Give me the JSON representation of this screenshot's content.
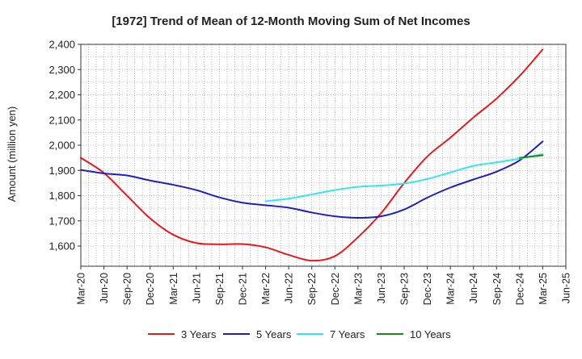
{
  "chart_data": {
    "type": "line",
    "title": "[1972]  Trend of Mean of 12-Month Moving Sum of Net Incomes",
    "ylabel": "Amount (million yen)",
    "xlabel": "",
    "ylim": [
      1520,
      2400
    ],
    "yticks": [
      1600,
      1700,
      1800,
      1900,
      2000,
      2100,
      2200,
      2300,
      2400
    ],
    "ytick_labels": [
      "1,600",
      "1,700",
      "1,800",
      "1,900",
      "2,000",
      "2,100",
      "2,200",
      "2,300",
      "2,400"
    ],
    "x_tick_labels": [
      "Mar-20",
      "Jun-20",
      "Sep-20",
      "Dec-20",
      "Mar-21",
      "Jun-21",
      "Sep-21",
      "Dec-21",
      "Mar-22",
      "Jun-22",
      "Sep-22",
      "Dec-22",
      "Mar-23",
      "Jun-23",
      "Sep-23",
      "Dec-23",
      "Mar-24",
      "Jun-24",
      "Sep-24",
      "Dec-24",
      "Mar-25",
      "Jun-25"
    ],
    "grid": true,
    "legend_position": "bottom",
    "series": [
      {
        "name": "3 Years",
        "color": "#e31a1c",
        "x": [
          "Mar-20",
          "Jun-20",
          "Sep-20",
          "Dec-20",
          "Mar-21",
          "Jun-21",
          "Sep-21",
          "Dec-21",
          "Mar-22",
          "Jun-22",
          "Sep-22",
          "Dec-22",
          "Mar-23",
          "Jun-23",
          "Sep-23",
          "Dec-23",
          "Mar-24",
          "Jun-24",
          "Sep-24",
          "Dec-24",
          "Mar-25"
        ],
        "values": [
          1950,
          1890,
          1800,
          1710,
          1645,
          1612,
          1607,
          1608,
          1595,
          1565,
          1542,
          1560,
          1635,
          1730,
          1850,
          1955,
          2030,
          2110,
          2185,
          2275,
          2380
        ]
      },
      {
        "name": "5 Years",
        "color": "#1f1fbf",
        "x": [
          "Mar-20",
          "Jun-20",
          "Sep-20",
          "Dec-20",
          "Mar-21",
          "Jun-21",
          "Sep-21",
          "Dec-21",
          "Mar-22",
          "Jun-22",
          "Sep-22",
          "Dec-22",
          "Mar-23",
          "Jun-23",
          "Sep-23",
          "Dec-23",
          "Mar-24",
          "Jun-24",
          "Sep-24",
          "Dec-24",
          "Mar-25"
        ],
        "values": [
          1902,
          1888,
          1880,
          1860,
          1843,
          1822,
          1793,
          1772,
          1762,
          1752,
          1733,
          1718,
          1712,
          1718,
          1745,
          1792,
          1832,
          1864,
          1895,
          1940,
          2015
        ]
      },
      {
        "name": "7 Years",
        "color": "#33e5f0",
        "x": [
          "Mar-22",
          "Jun-22",
          "Sep-22",
          "Dec-22",
          "Mar-23",
          "Jun-23",
          "Sep-23",
          "Dec-23",
          "Mar-24",
          "Jun-24",
          "Sep-24",
          "Dec-24",
          "Mar-25"
        ],
        "values": [
          1778,
          1788,
          1805,
          1822,
          1835,
          1840,
          1848,
          1866,
          1892,
          1918,
          1932,
          1947,
          1965
        ]
      },
      {
        "name": "10 Years",
        "color": "#1a8a1a",
        "x": [
          "Dec-24",
          "Mar-25"
        ],
        "values": [
          1950,
          1960
        ]
      }
    ]
  }
}
